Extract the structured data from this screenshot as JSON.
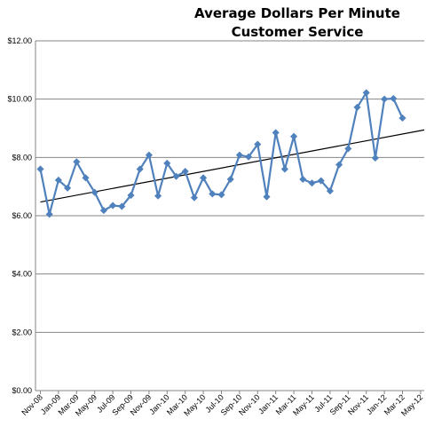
{
  "chart_data": {
    "type": "line",
    "title": "Average Dollars Per Minute",
    "subtitle": "Customer Service",
    "xlabel": "",
    "ylabel": "",
    "ylim": [
      0,
      12
    ],
    "yticks": [
      "$0.00",
      "$2.00",
      "$4.00",
      "$6.00",
      "$8.00",
      "$10.00",
      "$12.00"
    ],
    "xtick_labels": [
      "Nov-08",
      "Jan-09",
      "Mar-09",
      "May-09",
      "Jul-09",
      "Sep-09",
      "Nov-09",
      "Jan-10",
      "Mar-10",
      "May-10",
      "Jul-10",
      "Sep-10",
      "Nov-10",
      "Jan-11",
      "Mar-11",
      "May-11",
      "Jul-11",
      "Sep-11",
      "Nov-11",
      "Jan-12",
      "Mar-12",
      "May-12"
    ],
    "grid": "horizontal",
    "legend": "none",
    "series": [
      {
        "values": [
          7.6,
          6.05,
          7.22,
          6.95,
          7.85,
          7.3,
          6.8,
          6.18,
          6.35,
          6.32,
          6.7,
          7.6,
          8.08,
          6.68,
          7.8,
          7.35,
          7.52,
          6.62,
          7.3,
          6.75,
          6.72,
          7.25,
          8.08,
          8.02,
          8.45,
          6.65,
          8.85,
          7.6,
          8.72,
          7.25,
          7.12,
          7.2,
          6.85,
          7.75,
          8.3,
          9.72,
          10.22,
          7.98,
          10.0,
          10.02,
          9.35
        ]
      }
    ],
    "trendline": {
      "type": "linear",
      "color": "#000000"
    },
    "colors": {
      "series": "#4f81bd",
      "gridline": "#868686",
      "axis": "#868686"
    }
  }
}
